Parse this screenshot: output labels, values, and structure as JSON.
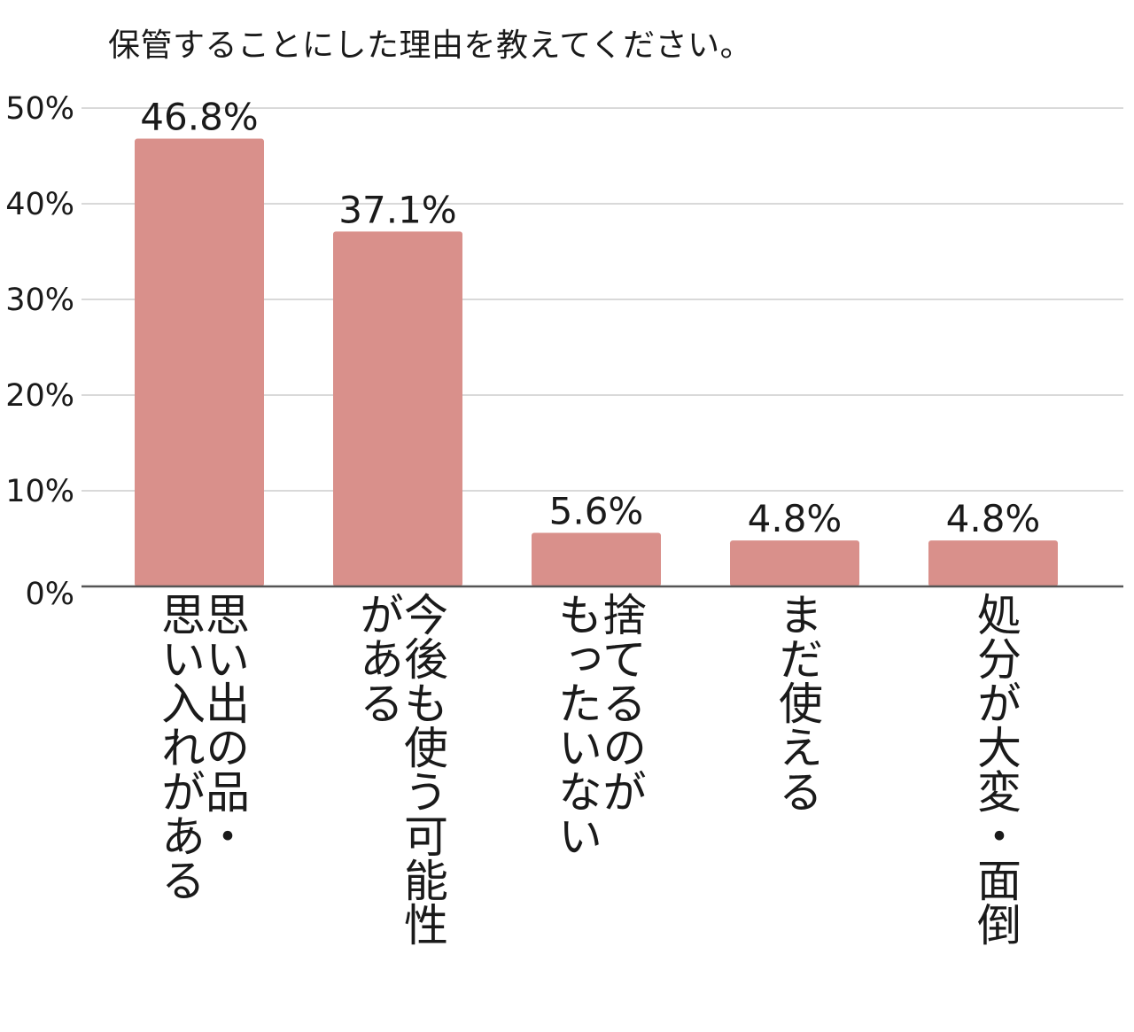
{
  "chart_data": {
    "type": "bar",
    "title": "保管することにした理由を教えてください。",
    "categories": [
      "思い出の品・\n思い入れがある",
      "今後も使う可能性\nがある",
      "捨てるのが\nもったいない",
      "まだ使える",
      "処分が大変・面倒"
    ],
    "values": [
      46.8,
      37.1,
      5.6,
      4.8,
      4.8
    ],
    "data_labels": [
      "46.8%",
      "37.1%",
      "5.6%",
      "4.8%",
      "4.8%"
    ],
    "ylim": [
      0,
      50
    ],
    "yticks": [
      0,
      10,
      20,
      30,
      40,
      50
    ],
    "ytick_labels": [
      "0%",
      "10%",
      "20%",
      "30%",
      "40%",
      "50%"
    ],
    "xlabel": "",
    "ylabel": "",
    "grid": true,
    "bar_color": "#d9908b",
    "grid_color": "#d9d9d9",
    "axis_color": "#555555"
  }
}
